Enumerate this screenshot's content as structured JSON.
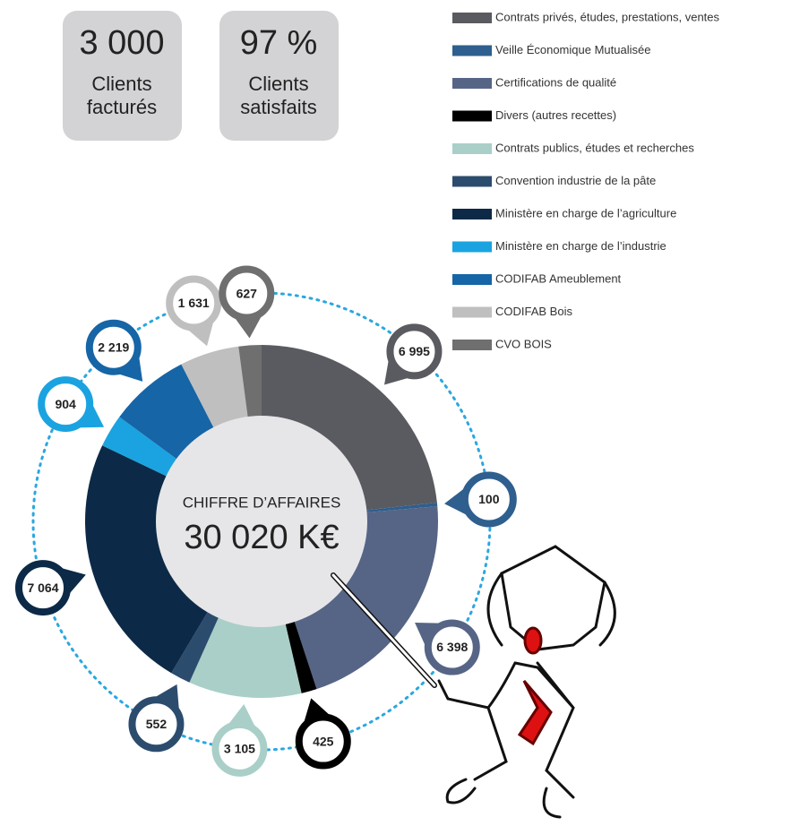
{
  "stats": [
    {
      "number": "3 000",
      "lines": [
        "Clients",
        "facturés"
      ]
    },
    {
      "number": "97 %",
      "lines": [
        "Clients",
        "satisfaits"
      ]
    }
  ],
  "chart_data": {
    "type": "donut",
    "center_text": [
      "CHIFFRE D’AFFAIRES",
      "30 020 K€"
    ],
    "categories": [
      "Contrats privés, études, prestations, ventes",
      "Veille Économique Mutualisée",
      "Certifications de qualité",
      "Divers (autres recettes)",
      "Contrats publics, études et recherches",
      "Convention industrie de la pâte",
      "Ministère en charge de l’agriculture",
      "Ministère en charge de l’industrie",
      "CODIFAB Ameublement",
      "CODIFAB Bois",
      "CVO BOIS"
    ],
    "values": [
      6995,
      100,
      6398,
      425,
      3105,
      552,
      7064,
      904,
      2219,
      1631,
      627
    ],
    "value_labels": [
      "6 995",
      "100",
      "6 398",
      "425",
      "3 105",
      "552",
      "7 064",
      "904",
      "2 219",
      "1 631",
      "627"
    ],
    "colors": [
      "#5a5b60",
      "#2e5f8e",
      "#566586",
      "#000000",
      "#a9cfc8",
      "#2c4c6e",
      "#0c2a47",
      "#1aa3e0",
      "#1665a6",
      "#bfbfbf",
      "#6f6f6f"
    ]
  }
}
